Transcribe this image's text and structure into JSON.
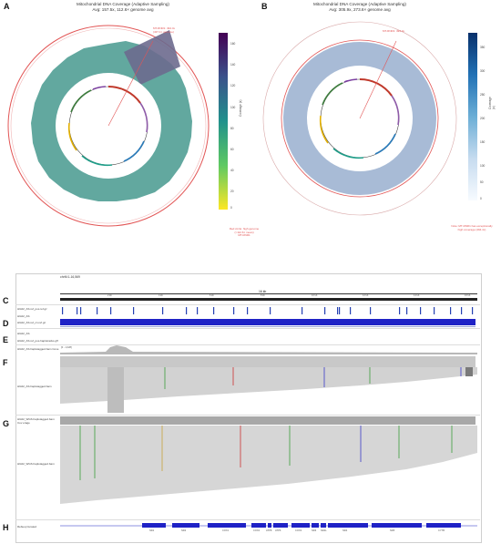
{
  "panels": {
    "a": {
      "letter": "A",
      "title": "Mitochondrial DNA Coverage (Adaptive Sampling)",
      "subtitle": "Avg: 157.5x, 112.6× genome avg",
      "marker": "MT-RNR1: 494.4x",
      "marker_sub": "(437.1× genome)",
      "cbar_label": "Coverage (x)",
      "cbar_ticks": [
        "160",
        "140",
        "120",
        "100",
        "80",
        "60",
        "40",
        "20",
        "0"
      ],
      "note": "Red circle: high genome\n(>112.6× mean)\nMT-RNR1",
      "cmap": [
        "#440154",
        "#3b528b",
        "#21918c",
        "#5ec962",
        "#fde725"
      ]
    },
    "b": {
      "letter": "B",
      "title": "Mitochondrial DNA Coverage (Adaptive Sampling)",
      "subtitle": "Avg: 305.9x, 273.6× genome avg",
      "marker": "MT-RNR1: 494.4x",
      "cbar_label": "Coverage (x)",
      "cbar_ticks": [
        "350",
        "300",
        "250",
        "200",
        "150",
        "100",
        "50",
        "0"
      ],
      "note": "Note: MT-RNR1 has exceptionally\nhigh coverage (494.4x)",
      "cmap": [
        "#08306b",
        "#2171b5",
        "#6baed6",
        "#c6dbef",
        "#f7fbff"
      ]
    }
  },
  "igv": {
    "locus": "chrM:1-16,569",
    "scale": "16 kb",
    "ruler_ticks": [
      "2 kb",
      "4 kb",
      "6 kb",
      "8 kb",
      "10 kb",
      "12 kb",
      "14 kb",
      "16 kb"
    ],
    "row_letters": [
      "C",
      "D",
      "E",
      "F",
      "G",
      "H"
    ],
    "tracks": [
      {
        "label": "HG02_AS.ref_pos.ref.gz"
      },
      {
        "label": "HG02_AS"
      },
      {
        "label": "HG02_AS.ref_cn.ref.gz"
      },
      {
        "label": "HG02_AS"
      },
      {
        "label": "HG02_AS.ref_pos.haplotracks.gff"
      },
      {
        "label": "HG02_AS.haplotagged.bam Cove"
      },
      {
        "label": "HG02_AS.haplotagged.bam"
      },
      {
        "label": "HG02_WGS.haplotagged.bam Cov erage"
      },
      {
        "label": "HG02_WGS.haplotagged.bam"
      },
      {
        "label": "Refseq Curated"
      }
    ],
    "coverage_range": "[0 - 1,028]",
    "genes": [
      "ND1",
      "ND2",
      "COX1",
      "COX2",
      "ATP8",
      "ATP6",
      "COX3",
      "ND3",
      "ND4L",
      "ND4",
      "ND5",
      "CYTB"
    ]
  }
}
